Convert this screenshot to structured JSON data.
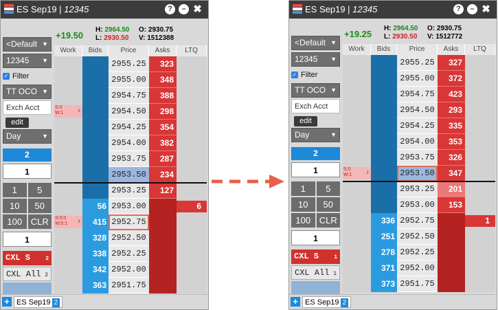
{
  "colors": {
    "bid_dark": "#1b6fa8",
    "bid_light": "#2b9be0",
    "ask": "#d93636",
    "highlight": "#e06a4d",
    "arrow": "#e8604a"
  },
  "column_headers": [
    "Work",
    "Bids",
    "Price",
    "Asks",
    "LTQ"
  ],
  "windows": [
    {
      "title": "ES Sep19 | ",
      "title_italic": "12345",
      "change": "+19.50",
      "high": "2964.50",
      "low": "2930.50",
      "open": "2930.75",
      "volume": "1512388",
      "h_label": "H:",
      "l_label": "L:",
      "o_label": "O:",
      "v_label": "V:",
      "left": {
        "template": "<Default",
        "account": "12345",
        "filter": "Filter",
        "order_type": "TT OCO",
        "exch_acct": "Exch Acct",
        "edit": "edit",
        "tif": "Day",
        "qty_blue": "2",
        "qty": "1",
        "buttons": [
          "1",
          "5",
          "10",
          "50",
          "100",
          "CLR"
        ],
        "qty2": "1",
        "cxl_s": "CXL S",
        "cxl_s_count": "2",
        "cxl_all": "CXL All",
        "cxl_all_count": "2"
      },
      "rows": [
        {
          "price": "2955.25",
          "bid": "",
          "ask": "323",
          "ltq": "",
          "work": ""
        },
        {
          "price": "2955.00",
          "bid": "",
          "ask": "348",
          "ltq": "",
          "work": ""
        },
        {
          "price": "2954.75",
          "bid": "",
          "ask": "388",
          "ltq": "",
          "work": ""
        },
        {
          "price": "2954.50",
          "bid": "",
          "ask": "298",
          "ltq": "",
          "work": "S:0\nW:1"
        },
        {
          "price": "2954.25",
          "bid": "",
          "ask": "354",
          "ltq": "",
          "work": ""
        },
        {
          "price": "2954.00",
          "bid": "",
          "ask": "382",
          "ltq": "",
          "work": ""
        },
        {
          "price": "2953.75",
          "bid": "",
          "ask": "287",
          "ltq": "",
          "work": ""
        },
        {
          "price": "2953.50",
          "bid": "",
          "ask": "234",
          "ltq": "",
          "work": ""
        },
        {
          "price": "2953.25",
          "bid": "",
          "ask": "127",
          "ltq": "",
          "work": ""
        },
        {
          "price": "2953.00",
          "bid": "56",
          "ask": "",
          "ltq": "6",
          "work": ""
        },
        {
          "price": "2952.75",
          "bid": "415",
          "ask": "",
          "ltq": "",
          "work": "S:0:0\nW:0:1"
        },
        {
          "price": "2952.50",
          "bid": "328",
          "ask": "",
          "ltq": "",
          "work": ""
        },
        {
          "price": "2952.25",
          "bid": "338",
          "ask": "",
          "ltq": "",
          "work": ""
        },
        {
          "price": "2952.00",
          "bid": "342",
          "ask": "",
          "ltq": "",
          "work": ""
        },
        {
          "price": "2951.75",
          "bid": "363",
          "ask": "",
          "ltq": "",
          "work": ""
        }
      ],
      "tab": "ES Sep19",
      "tab_count": "2"
    },
    {
      "title": "ES Sep19 | ",
      "title_italic": "12345",
      "change": "+19.25",
      "high": "2964.50",
      "low": "2930.50",
      "open": "2930.75",
      "volume": "1512772",
      "h_label": "H:",
      "l_label": "L:",
      "o_label": "O:",
      "v_label": "V:",
      "left": {
        "template": "<Default",
        "account": "12345",
        "filter": "Filter",
        "order_type": "TT OCO",
        "exch_acct": "Exch Acct",
        "edit": "edit",
        "tif": "Day",
        "qty_blue": "2",
        "qty": "1",
        "buttons": [
          "1",
          "5",
          "10",
          "50",
          "100",
          "CLR"
        ],
        "qty2": "1",
        "cxl_s": "CXL S",
        "cxl_s_count": "1",
        "cxl_all": "CXL All",
        "cxl_all_count": "1"
      },
      "rows": [
        {
          "price": "2955.25",
          "bid": "",
          "ask": "327",
          "ltq": "",
          "work": ""
        },
        {
          "price": "2955.00",
          "bid": "",
          "ask": "372",
          "ltq": "",
          "work": ""
        },
        {
          "price": "2954.75",
          "bid": "",
          "ask": "423",
          "ltq": "",
          "work": ""
        },
        {
          "price": "2954.50",
          "bid": "",
          "ask": "293",
          "ltq": "",
          "work": ""
        },
        {
          "price": "2954.25",
          "bid": "",
          "ask": "335",
          "ltq": "",
          "work": ""
        },
        {
          "price": "2954.00",
          "bid": "",
          "ask": "353",
          "ltq": "",
          "work": ""
        },
        {
          "price": "2953.75",
          "bid": "",
          "ask": "326",
          "ltq": "",
          "work": ""
        },
        {
          "price": "2953.50",
          "bid": "",
          "ask": "347",
          "ltq": "",
          "work": "S:0\nW:1"
        },
        {
          "price": "2953.25",
          "bid": "",
          "ask": "201",
          "ltq": "",
          "work": ""
        },
        {
          "price": "2953.00",
          "bid": "",
          "ask": "153",
          "ltq": "",
          "work": ""
        },
        {
          "price": "2952.75",
          "bid": "336",
          "ask": "",
          "ltq": "1",
          "work": ""
        },
        {
          "price": "2952.50",
          "bid": "251",
          "ask": "",
          "ltq": "",
          "work": ""
        },
        {
          "price": "2952.25",
          "bid": "278",
          "ask": "",
          "ltq": "",
          "work": ""
        },
        {
          "price": "2952.00",
          "bid": "371",
          "ask": "",
          "ltq": "",
          "work": ""
        },
        {
          "price": "2951.75",
          "bid": "373",
          "ask": "",
          "ltq": "",
          "work": ""
        }
      ],
      "tab": "ES Sep19",
      "tab_count": "2"
    }
  ]
}
